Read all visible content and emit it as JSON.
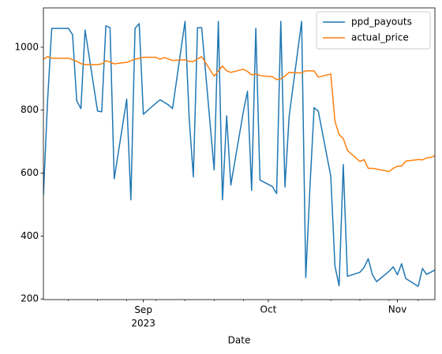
{
  "chart_data": {
    "type": "line",
    "xlabel": "Date",
    "x": [
      "2023-08-08",
      "2023-08-09",
      "2023-08-10",
      "2023-08-11",
      "2023-08-14",
      "2023-08-15",
      "2023-08-16",
      "2023-08-17",
      "2023-08-18",
      "2023-08-21",
      "2023-08-22",
      "2023-08-23",
      "2023-08-24",
      "2023-08-25",
      "2023-08-28",
      "2023-08-29",
      "2023-08-30",
      "2023-08-31",
      "2023-09-01",
      "2023-09-04",
      "2023-09-05",
      "2023-09-06",
      "2023-09-07",
      "2023-09-08",
      "2023-09-11",
      "2023-09-12",
      "2023-09-13",
      "2023-09-14",
      "2023-09-15",
      "2023-09-18",
      "2023-09-19",
      "2023-09-20",
      "2023-09-21",
      "2023-09-22",
      "2023-09-25",
      "2023-09-26",
      "2023-09-27",
      "2023-09-28",
      "2023-09-29",
      "2023-10-02",
      "2023-10-03",
      "2023-10-04",
      "2023-10-05",
      "2023-10-06",
      "2023-10-09",
      "2023-10-10",
      "2023-10-11",
      "2023-10-12",
      "2023-10-13",
      "2023-10-16",
      "2023-10-17",
      "2023-10-18",
      "2023-10-19",
      "2023-10-20",
      "2023-10-23",
      "2023-10-24",
      "2023-10-25",
      "2023-10-26",
      "2023-10-27",
      "2023-10-30",
      "2023-10-31",
      "2023-11-01",
      "2023-11-02",
      "2023-11-03",
      "2023-11-06",
      "2023-11-07",
      "2023-11-08",
      "2023-11-09",
      "2023-11-10"
    ],
    "series": [
      {
        "name": "ppd_payouts",
        "color": "#1f77b4",
        "values": [
          530,
          830,
          1060,
          1060,
          1060,
          1040,
          830,
          805,
          1055,
          797,
          795,
          1068,
          1062,
          582,
          835,
          515,
          1060,
          1075,
          787,
          822,
          833,
          825,
          817,
          805,
          1082,
          775,
          588,
          1062,
          1062,
          610,
          1082,
          515,
          782,
          562,
          795,
          860,
          545,
          1060,
          578,
          557,
          535,
          1082,
          556,
          780,
          1082,
          268,
          555,
          808,
          797,
          590,
          305,
          242,
          627,
          272,
          285,
          300,
          328,
          277,
          255,
          288,
          302,
          277,
          312,
          265,
          240,
          297,
          278,
          285,
          292
        ]
      },
      {
        "name": "actual_price",
        "color": "#ff7f0e",
        "values": [
          962,
          970,
          965,
          965,
          965,
          960,
          955,
          948,
          945,
          945,
          947,
          957,
          953,
          947,
          952,
          957,
          962,
          965,
          968,
          968,
          962,
          967,
          963,
          958,
          960,
          955,
          955,
          963,
          970,
          908,
          925,
          940,
          925,
          920,
          930,
          923,
          912,
          915,
          910,
          906,
          897,
          900,
          908,
          920,
          918,
          925,
          925,
          925,
          905,
          915,
          765,
          722,
          710,
          672,
          637,
          643,
          615,
          615,
          613,
          605,
          615,
          622,
          622,
          638,
          643,
          642,
          648,
          650,
          655
        ]
      }
    ],
    "xlim": [
      "2023-08-08",
      "2023-11-10"
    ],
    "xticks": [
      {
        "value": "2023-09-01",
        "label": "Sep\n2023"
      },
      {
        "value": "2023-10-01",
        "label": "Oct"
      },
      {
        "value": "2023-11-01",
        "label": "Nov"
      }
    ],
    "xminorticks": [
      "2023-08-14",
      "2023-08-21",
      "2023-08-28",
      "2023-09-04",
      "2023-09-11",
      "2023-09-18",
      "2023-09-25",
      "2023-10-09",
      "2023-10-16",
      "2023-10-23",
      "2023-10-30",
      "2023-11-06"
    ],
    "ylim": [
      198,
      1125
    ],
    "yticks": [
      200,
      400,
      600,
      800,
      1000
    ],
    "grid": false,
    "legend": "upper right"
  }
}
